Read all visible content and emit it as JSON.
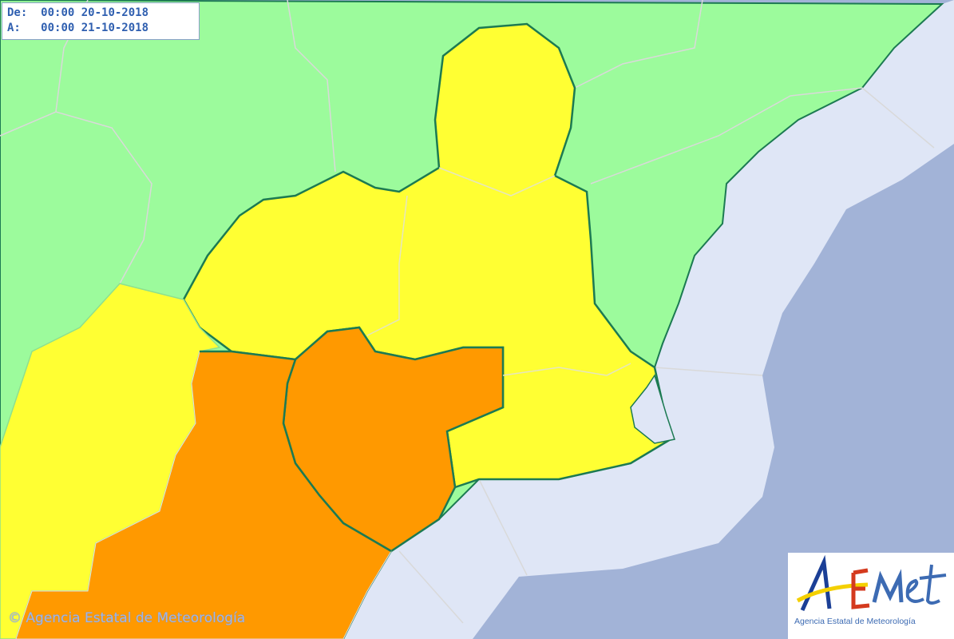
{
  "validity": {
    "from_label": "De:",
    "from_value": "00:00 20-10-2018",
    "to_label": "A:",
    "to_value": "00:00 21-10-2018"
  },
  "copyright": "© Agencia Estatal de Meteorología",
  "logo": {
    "text": "AEMet",
    "subtitle": "Agencia Estatal de Meteorología"
  },
  "colors": {
    "no_warning": "#9cfb9c",
    "yellow_warning": "#ffff33",
    "orange_warning": "#ff9900",
    "coastal_sea": "#dfe6f6",
    "open_sea": "#a2b3d7",
    "region_border": "#1c7a52"
  }
}
